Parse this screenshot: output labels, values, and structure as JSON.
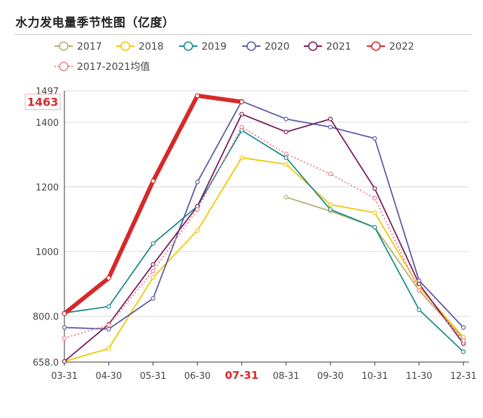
{
  "title": "水力发电量季节性图（亿度）",
  "chart_data": {
    "type": "line",
    "title": "水力发电量季节性图（亿度）",
    "xlabel": "",
    "ylabel": "",
    "categories": [
      "03-31",
      "04-30",
      "05-31",
      "06-30",
      "07-31",
      "08-31",
      "09-30",
      "10-31",
      "11-30",
      "12-31"
    ],
    "yticks": [
      "658.0",
      "800.0",
      "1000",
      "1200",
      "1400",
      "1497"
    ],
    "ylim": [
      658,
      1497
    ],
    "grid": true,
    "legend_position": "top-left",
    "highlight": {
      "x_label": "07-31",
      "y_label": "1463",
      "color": "#d7282a"
    },
    "series": [
      {
        "name": "2017",
        "color": "#b5b06e",
        "width": 1.8,
        "values": [
          null,
          null,
          null,
          null,
          null,
          1168,
          1125,
          1075,
          880,
          730
        ]
      },
      {
        "name": "2018",
        "color": "#f0c800",
        "width": 1.8,
        "values": [
          660,
          700,
          920,
          1065,
          1290,
          1270,
          1145,
          1120,
          890,
          735
        ]
      },
      {
        "name": "2019",
        "color": "#1a8a8a",
        "width": 1.8,
        "values": [
          810,
          830,
          1025,
          1140,
          1375,
          1290,
          1130,
          1075,
          820,
          690
        ]
      },
      {
        "name": "2020",
        "color": "#5a5aa8",
        "width": 1.8,
        "values": [
          765,
          760,
          855,
          1215,
          1465,
          1410,
          1385,
          1350,
          910,
          765
        ]
      },
      {
        "name": "2021",
        "color": "#7a1a5a",
        "width": 1.8,
        "values": [
          660,
          775,
          960,
          1140,
          1425,
          1370,
          1410,
          1195,
          900,
          715
        ]
      },
      {
        "name": "2022",
        "color": "#d7282a",
        "width": 6,
        "values": [
          808,
          918,
          1218,
          1482,
          1463,
          null,
          null,
          null,
          null,
          null
        ]
      },
      {
        "name": "2017-2021均值",
        "color": "#ec8090",
        "width": 2,
        "dashed": true,
        "values": [
          732,
          773,
          940,
          1130,
          1385,
          1302,
          1240,
          1165,
          880,
          725
        ]
      }
    ]
  }
}
